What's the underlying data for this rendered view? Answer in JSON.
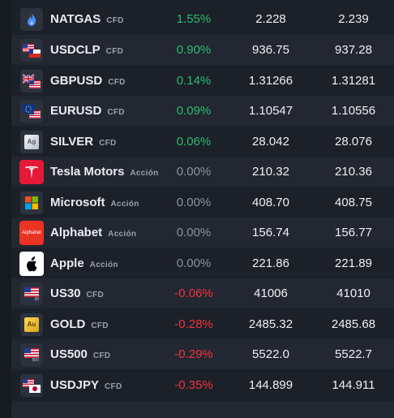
{
  "instruments": [
    {
      "name": "NATGAS",
      "tag": "CFD",
      "change": "1.55%",
      "bid": "2.228",
      "ask": "2.239",
      "icon": "flame-icon",
      "dir": "pos"
    },
    {
      "name": "USDCLP",
      "tag": "CFD",
      "change": "0.90%",
      "bid": "936.75",
      "ask": "937.28",
      "icon": "usd-clp-flags-icon",
      "dir": "pos"
    },
    {
      "name": "GBPUSD",
      "tag": "CFD",
      "change": "0.14%",
      "bid": "1.31266",
      "ask": "1.31281",
      "icon": "gbp-usd-flags-icon",
      "dir": "pos"
    },
    {
      "name": "EURUSD",
      "tag": "CFD",
      "change": "0.09%",
      "bid": "1.10547",
      "ask": "1.10556",
      "icon": "eur-usd-flags-icon",
      "dir": "pos"
    },
    {
      "name": "SILVER",
      "tag": "CFD",
      "change": "0.06%",
      "bid": "28.042",
      "ask": "28.076",
      "icon": "silver-ag-icon",
      "dir": "pos"
    },
    {
      "name": "Tesla Motors",
      "tag": "Acción",
      "change": "0.00%",
      "bid": "210.32",
      "ask": "210.36",
      "icon": "tesla-logo-icon",
      "dir": "zero"
    },
    {
      "name": "Microsoft",
      "tag": "Acción",
      "change": "0.00%",
      "bid": "408.70",
      "ask": "408.75",
      "icon": "microsoft-logo-icon",
      "dir": "zero"
    },
    {
      "name": "Alphabet",
      "tag": "Acción",
      "change": "0.00%",
      "bid": "156.74",
      "ask": "156.77",
      "icon": "alphabet-logo-icon",
      "dir": "zero"
    },
    {
      "name": "Apple",
      "tag": "Acción",
      "change": "0.00%",
      "bid": "221.86",
      "ask": "221.89",
      "icon": "apple-logo-icon",
      "dir": "zero"
    },
    {
      "name": "US30",
      "tag": "CFD",
      "change": "-0.06%",
      "bid": "41006",
      "ask": "41010",
      "icon": "us-flag-30-icon",
      "dir": "neg"
    },
    {
      "name": "GOLD",
      "tag": "CFD",
      "change": "-0.28%",
      "bid": "2485.32",
      "ask": "2485.68",
      "icon": "gold-au-icon",
      "dir": "neg"
    },
    {
      "name": "US500",
      "tag": "CFD",
      "change": "-0.29%",
      "bid": "5522.0",
      "ask": "5522.7",
      "icon": "us-flag-500-icon",
      "dir": "neg"
    },
    {
      "name": "USDJPY",
      "tag": "CFD",
      "change": "-0.35%",
      "bid": "144.899",
      "ask": "144.911",
      "icon": "usd-jpy-flags-icon",
      "dir": "neg"
    }
  ],
  "icon_text": {
    "silver": "Ag",
    "gold": "Au",
    "alphabet": "Alphabet",
    "us30": "30",
    "us500": "500"
  },
  "colors": {
    "positive": "#2bbd6e",
    "negative": "#f0333f",
    "neutral": "#8d939e",
    "background": "#1c2029"
  }
}
